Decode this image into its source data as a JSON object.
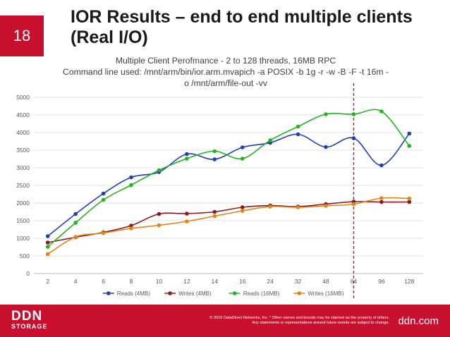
{
  "slide": {
    "number": "18",
    "title_line1": "IOR Results – end to end multiple clients",
    "title_line2": "(Real I/O)"
  },
  "chart_data": {
    "type": "line",
    "title_lines": [
      "Multiple Client Perofmance - 2 to 128 threads, 16MB RPC",
      "Command line used: /mnt/arm/bin/ior.arm.mvapich -a POSIX -b 1g -r -w -B -F -t 16m -",
      "o /mnt/arm/file-out -vv"
    ],
    "categories": [
      "2",
      "4",
      "6",
      "8",
      "10",
      "12",
      "14",
      "16",
      "24",
      "32",
      "48",
      "64",
      "96",
      "128"
    ],
    "series": [
      {
        "name": "Reads (4MB)",
        "color": "#1f3fb4",
        "values": [
          1060,
          1690,
          2270,
          2730,
          2880,
          3390,
          3240,
          3580,
          3710,
          3950,
          3590,
          3840,
          3070,
          3970
        ]
      },
      {
        "name": "Writes (4MB)",
        "color": "#8b1a1a",
        "values": [
          880,
          1030,
          1170,
          1360,
          1690,
          1700,
          1750,
          1880,
          1930,
          1900,
          1970,
          2040,
          2030,
          2030
        ]
      },
      {
        "name": "Reads (16MB)",
        "color": "#22b422",
        "values": [
          760,
          1440,
          2090,
          2510,
          2930,
          3260,
          3470,
          3260,
          3780,
          4170,
          4520,
          4520,
          4600,
          3620
        ]
      },
      {
        "name": "Writes (16MB)",
        "color": "#e38417",
        "values": [
          550,
          1040,
          1150,
          1280,
          1370,
          1480,
          1630,
          1780,
          1900,
          1880,
          1920,
          1970,
          2140,
          2130
        ]
      }
    ],
    "ylim": [
      0,
      5000
    ],
    "yticks": [
      "0",
      "500",
      "1000",
      "1500",
      "2000",
      "2500",
      "3000",
      "3500",
      "4000",
      "4500",
      "5000"
    ],
    "marker_line_category": "64",
    "marker_line_color": "#b02020",
    "grid": true,
    "legend_position": "bottom"
  },
  "footer": {
    "logo_main": "DDN",
    "logo_sub": "STORAGE",
    "disclaimer_line1": "© 2016 DataDirect Networks, Inc. * Other names and brands may be claimed as the property of others.",
    "disclaimer_line2": "Any statements or representations around future events are subject to change.",
    "site": "ddn.com"
  }
}
